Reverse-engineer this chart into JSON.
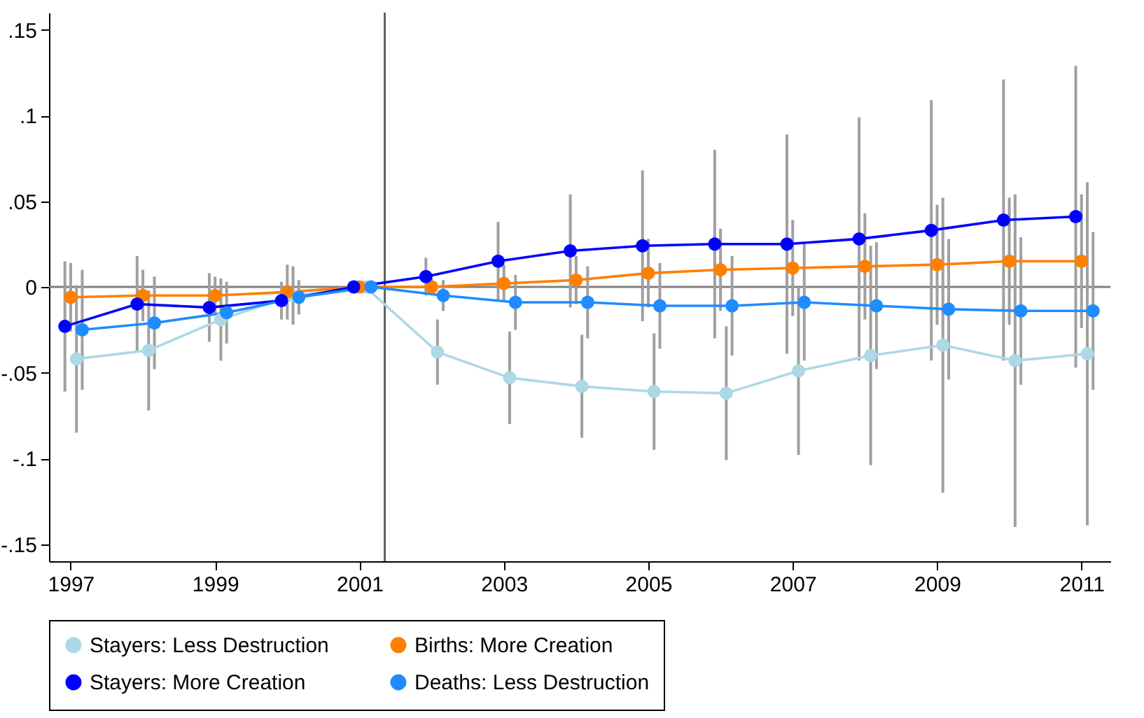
{
  "chart_data": {
    "type": "line",
    "marker": "circle",
    "legend": "bottom",
    "grid": false,
    "xlim": [
      1996.7,
      2011.4
    ],
    "xticks": [
      1997,
      1999,
      2001,
      2003,
      2005,
      2007,
      2009,
      2011
    ],
    "ylim": [
      -0.16,
      0.16
    ],
    "yticks": [
      {
        "value": -0.15,
        "label": "-.15"
      },
      {
        "value": -0.1,
        "label": "-.1"
      },
      {
        "value": -0.05,
        "label": "-.05"
      },
      {
        "value": 0,
        "label": "0"
      },
      {
        "value": 0.05,
        "label": ".05"
      },
      {
        "value": 0.1,
        "label": ".1"
      },
      {
        "value": 0.15,
        "label": ".15"
      }
    ],
    "ref_lines": [
      {
        "axis": "y",
        "value": 0,
        "color": "#808080"
      },
      {
        "axis": "x",
        "value": 2001.35,
        "color": "#606060"
      }
    ],
    "series": [
      {
        "name": "Stayers: Less Destruction",
        "color": "#add8e6",
        "x": [
          1997.08,
          1998.08,
          1999.08,
          2000.08,
          2001.08,
          2002.08,
          2003.08,
          2004.08,
          2005.08,
          2006.08,
          2007.08,
          2008.08,
          2009.08,
          2010.08,
          2011.08
        ],
        "values": [
          -0.042,
          -0.037,
          -0.019,
          -0.005,
          0,
          -0.038,
          -0.053,
          -0.058,
          -0.061,
          -0.062,
          -0.049,
          -0.04,
          -0.034,
          -0.043,
          -0.039
        ],
        "errors": [
          0.043,
          0.035,
          0.024,
          0.017,
          null,
          0.019,
          0.027,
          0.03,
          0.034,
          0.039,
          0.049,
          0.064,
          0.086,
          0.097,
          0.1
        ]
      },
      {
        "name": "Births: More Creation",
        "color": "#ff7f00",
        "x": [
          1997,
          1998,
          1999,
          2000,
          2001,
          2002,
          2003,
          2004,
          2005,
          2006,
          2007,
          2008,
          2009,
          2010,
          2011
        ],
        "values": [
          -0.006,
          -0.005,
          -0.005,
          -0.003,
          0,
          0,
          0.002,
          0.004,
          0.008,
          0.01,
          0.011,
          0.012,
          0.013,
          0.015,
          0.015
        ],
        "errors": [
          0.02,
          0.015,
          0.011,
          0.016,
          null,
          0.005,
          0.011,
          0.014,
          0.02,
          0.024,
          0.028,
          0.031,
          0.035,
          0.037,
          0.039
        ]
      },
      {
        "name": "Stayers: More Creation",
        "color": "#0000ff",
        "x": [
          1996.92,
          1997.92,
          1998.92,
          1999.92,
          2000.92,
          2001.92,
          2002.92,
          2003.92,
          2004.92,
          2005.92,
          2006.92,
          2007.92,
          2008.92,
          2009.92,
          2010.92
        ],
        "values": [
          -0.023,
          -0.01,
          -0.012,
          -0.008,
          0,
          0.006,
          0.015,
          0.021,
          0.024,
          0.025,
          0.025,
          0.028,
          0.033,
          0.039,
          0.041
        ],
        "errors": [
          0.038,
          0.028,
          0.02,
          0.011,
          null,
          0.011,
          0.023,
          0.033,
          0.044,
          0.055,
          0.064,
          0.071,
          0.076,
          0.082,
          0.088
        ]
      },
      {
        "name": "Deaths: Less Destruction",
        "color": "#1e8cff",
        "x": [
          1997.16,
          1998.16,
          1999.16,
          2000.16,
          2001.16,
          2002.16,
          2003.16,
          2004.16,
          2005.16,
          2006.16,
          2007.16,
          2008.16,
          2009.16,
          2010.16,
          2011.16
        ],
        "values": [
          -0.025,
          -0.021,
          -0.015,
          -0.006,
          0,
          -0.005,
          -0.009,
          -0.009,
          -0.011,
          -0.011,
          -0.009,
          -0.011,
          -0.013,
          -0.014,
          -0.014
        ],
        "errors": [
          0.035,
          0.027,
          0.018,
          0.01,
          null,
          0.009,
          0.016,
          0.021,
          0.025,
          0.029,
          0.034,
          0.037,
          0.041,
          0.043,
          0.046
        ]
      }
    ]
  }
}
